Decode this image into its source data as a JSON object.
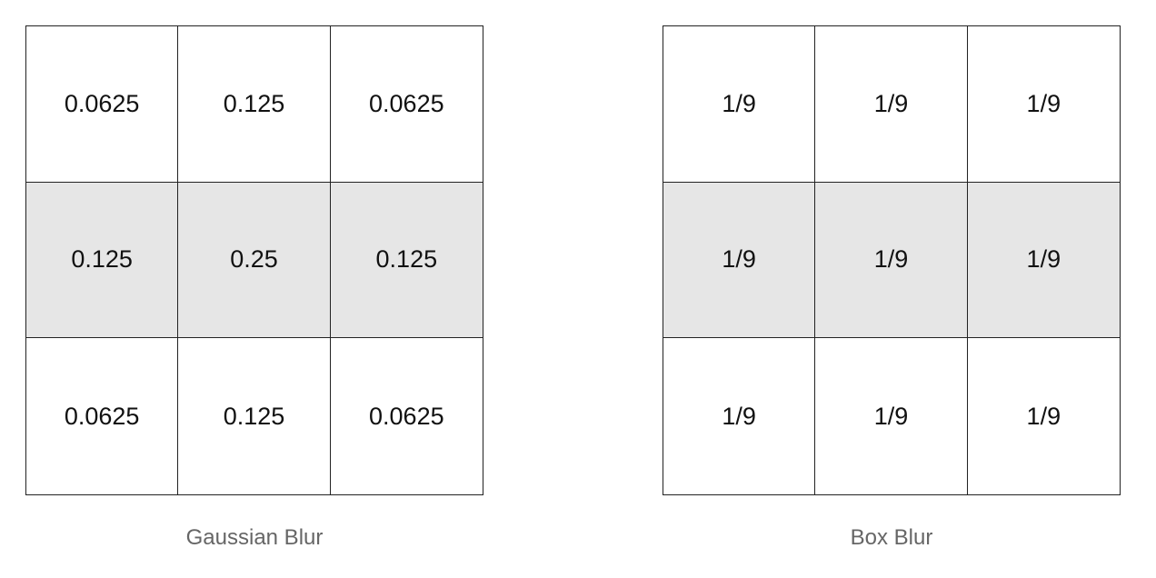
{
  "gaussian": {
    "caption": "Gaussian Blur",
    "rows": [
      [
        "0.0625",
        "0.125",
        "0.0625"
      ],
      [
        "0.125",
        "0.25",
        "0.125"
      ],
      [
        "0.0625",
        "0.125",
        "0.0625"
      ]
    ]
  },
  "box": {
    "caption": "Box Blur",
    "rows": [
      [
        "1/9",
        "1/9",
        "1/9"
      ],
      [
        "1/9",
        "1/9",
        "1/9"
      ],
      [
        "1/9",
        "1/9",
        "1/9"
      ]
    ]
  },
  "colors": {
    "highlight_row": "#e6e6e6",
    "grid_line": "#222222",
    "caption_text": "#666666"
  }
}
